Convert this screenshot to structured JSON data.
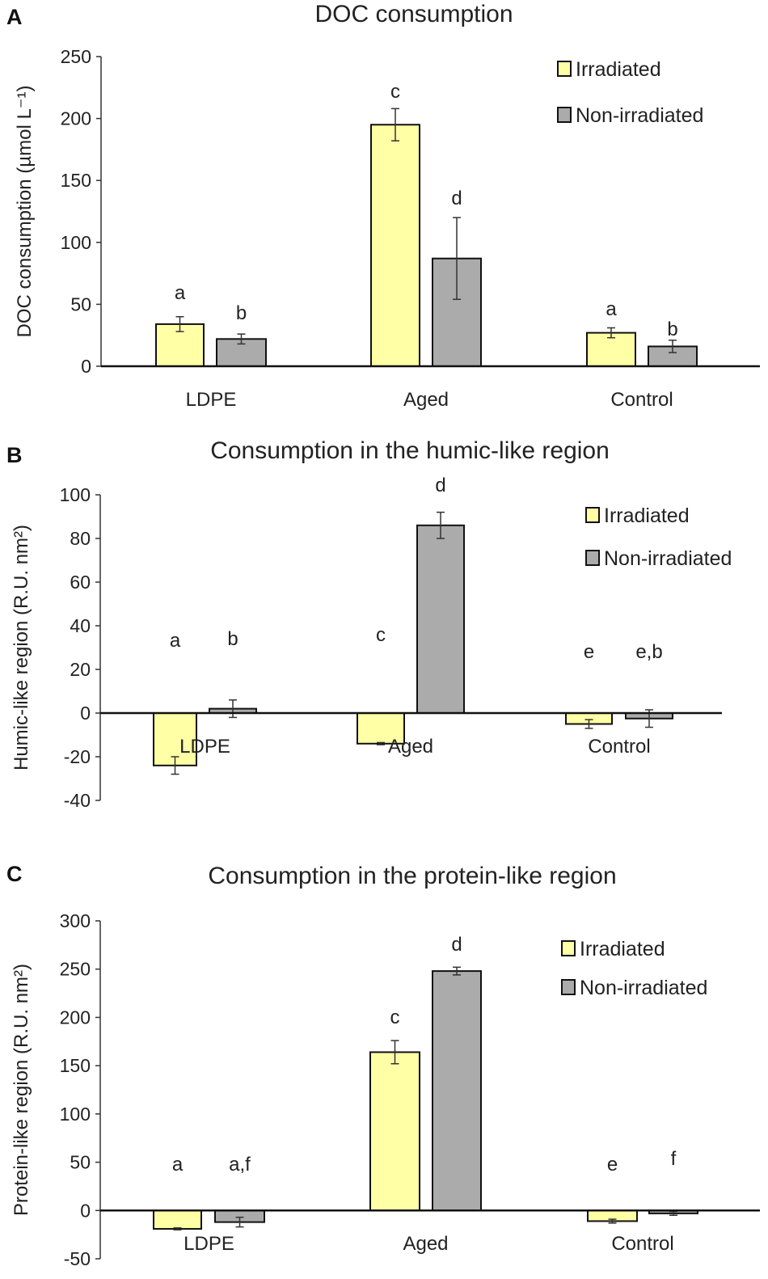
{
  "colors": {
    "irradiated": "#FFFFA6",
    "non_irradiated": "#ABABAB",
    "outline": "#111111"
  },
  "chart_data": [
    {
      "type": "bar",
      "panel": "A",
      "title": "DOC consumption",
      "ylabel": "DOC consumption (µmol L⁻¹)",
      "ylim": [
        0,
        250
      ],
      "yticks": [
        0,
        50,
        100,
        150,
        200,
        250
      ],
      "categories": [
        "LDPE",
        "Aged",
        "Control"
      ],
      "legend": [
        "Irradiated",
        "Non-irradiated"
      ],
      "legend_position": "top-right",
      "series": [
        {
          "name": "Irradiated",
          "values": [
            34,
            195,
            27
          ],
          "errors": [
            6,
            13,
            4
          ],
          "letters": [
            "a",
            "c",
            "a"
          ]
        },
        {
          "name": "Non-irradiated",
          "values": [
            22,
            87,
            16
          ],
          "errors": [
            4,
            33,
            5
          ],
          "letters": [
            "b",
            "d",
            "b"
          ]
        }
      ]
    },
    {
      "type": "bar",
      "panel": "B",
      "title": "Consumption in the humic-like region",
      "ylabel": "Humic-like region (R.U. nm²)",
      "ylim": [
        -40,
        100
      ],
      "yticks": [
        -40,
        -20,
        0,
        20,
        40,
        60,
        80,
        100
      ],
      "categories": [
        "LDPE",
        "Aged",
        "Control"
      ],
      "legend": [
        "Irradiated",
        "Non-irradiated"
      ],
      "legend_position": "top-right",
      "series": [
        {
          "name": "Irradiated",
          "values": [
            -24,
            -14,
            -5
          ],
          "errors": [
            4,
            0.5,
            2
          ],
          "letters": [
            "a",
            "c",
            "e"
          ]
        },
        {
          "name": "Non-irradiated",
          "values": [
            2,
            86,
            -2.5
          ],
          "errors": [
            4,
            6,
            4
          ],
          "letters": [
            "b",
            "d",
            "e,b"
          ]
        }
      ]
    },
    {
      "type": "bar",
      "panel": "C",
      "title": "Consumption in the protein-like region",
      "ylabel": "Protein-like region (R.U. nm²)",
      "ylim": [
        -50,
        300
      ],
      "yticks": [
        -50,
        0,
        50,
        100,
        150,
        200,
        250,
        300
      ],
      "categories": [
        "LDPE",
        "Aged",
        "Control"
      ],
      "legend": [
        "Irradiated",
        "Non-irradiated"
      ],
      "legend_position": "top-right",
      "series": [
        {
          "name": "Irradiated",
          "values": [
            -19,
            164,
            -11
          ],
          "errors": [
            1,
            12,
            2
          ],
          "letters": [
            "a",
            "c",
            "e"
          ]
        },
        {
          "name": "Non-irradiated",
          "values": [
            -12,
            248,
            -3
          ],
          "errors": [
            5,
            4,
            2
          ],
          "letters": [
            "a,f",
            "d",
            "f"
          ]
        }
      ]
    }
  ]
}
